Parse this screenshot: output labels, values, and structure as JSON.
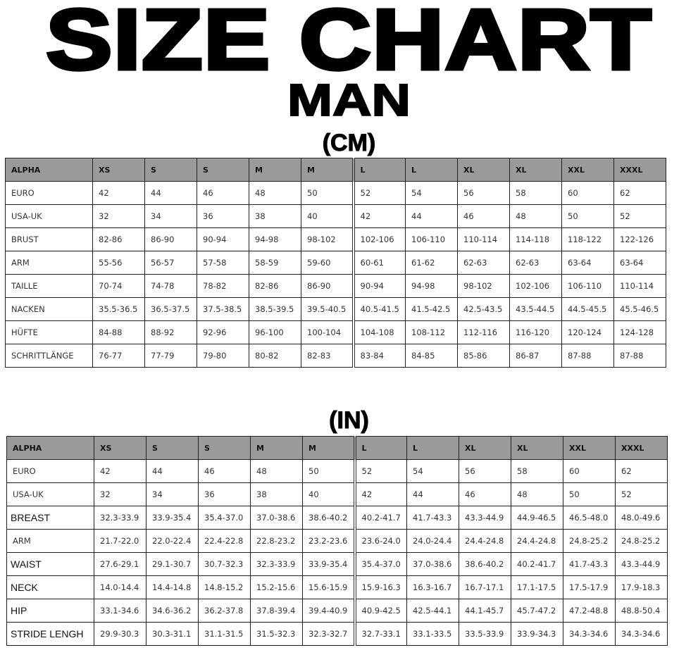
{
  "title": "SIZE CHART",
  "subtitle": "MAN",
  "cm_table": {
    "unit": "(CM)",
    "header": [
      "ALPHA",
      "XS",
      "S",
      "S",
      "M",
      "M",
      "L",
      "L",
      "XL",
      "XL",
      "XXL",
      "XXXL"
    ],
    "rows": [
      [
        "EURO",
        "42",
        "44",
        "46",
        "48",
        "50",
        "52",
        "54",
        "56",
        "58",
        "60",
        "62"
      ],
      [
        "USA-UK",
        "32",
        "34",
        "36",
        "38",
        "40",
        "42",
        "44",
        "46",
        "48",
        "50",
        "52"
      ],
      [
        "BRUST",
        "82-86",
        "86-90",
        "90-94",
        "94-98",
        "98-102",
        "102-106",
        "106-110",
        "110-114",
        "114-118",
        "118-122",
        "122-126"
      ],
      [
        "ARM",
        "55-56",
        "56-57",
        "57-58",
        "58-59",
        "59-60",
        "60-61",
        "61-62",
        "62-63",
        "62-63",
        "63-64",
        "63-64"
      ],
      [
        "TAILLE",
        "70-74",
        "74-78",
        "78-82",
        "82-86",
        "86-90",
        "90-94",
        "94-98",
        "98-102",
        "102-106",
        "106-110",
        "110-114"
      ],
      [
        "NACKEN",
        "35.5-36.5",
        "36.5-37.5",
        "37.5-38.5",
        "38.5-39.5",
        "39.5-40.5",
        "40.5-41.5",
        "41.5-42.5",
        "42.5-43.5",
        "43.5-44.5",
        "44.5-45.5",
        "45.5-46.5"
      ],
      [
        "HÜFTE",
        "84-88",
        "88-92",
        "92-96",
        "96-100",
        "100-104",
        "104-108",
        "108-112",
        "112-116",
        "116-120",
        "120-124",
        "124-128"
      ],
      [
        "SCHRITTLÄNGE",
        "76-77",
        "77-79",
        "79-80",
        "80-82",
        "82-83",
        "83-84",
        "84-85",
        "85-86",
        "86-87",
        "87-88",
        "87-88"
      ]
    ]
  },
  "in_table": {
    "unit": "(IN)",
    "header": [
      "ALPHA",
      "XS",
      "S",
      "S",
      "M",
      "M",
      "L",
      "L",
      "XL",
      "XL",
      "XXL",
      "XXXL"
    ],
    "rows": [
      [
        "EURO",
        "42",
        "44",
        "46",
        "48",
        "50",
        "52",
        "54",
        "56",
        "58",
        "60",
        "62"
      ],
      [
        "USA-UK",
        "32",
        "34",
        "36",
        "38",
        "40",
        "42",
        "44",
        "46",
        "48",
        "50",
        "52"
      ],
      [
        "BREAST",
        "32.3-33.9",
        "33.9-35.4",
        "35.4-37.0",
        "37.0-38.6",
        "38.6-40.2",
        "40.2-41.7",
        "41.7-43.3",
        "43.3-44.9",
        "44.9-46.5",
        "46.5-48.0",
        "48.0-49.6"
      ],
      [
        "ARM",
        "21.7-22.0",
        "22.0-22.4",
        "22.4-22.8",
        "22.8-23.2",
        "23.2-23.6",
        "23.6-24.0",
        "24.0-24.4",
        "24.4-24.8",
        "24.4-24.8",
        "24.8-25.2",
        "24.8-25.2"
      ],
      [
        "WAIST",
        "27.6-29.1",
        "29.1-30.7",
        "30.7-32.3",
        "32.3-33.9",
        "33.9-35.4",
        "35.4-37.0",
        "37.0-38.6",
        "38.6-40.2",
        "40.2-41.7",
        "41.7-43.3",
        "43.3-44.9"
      ],
      [
        "NECK",
        "14.0-14.4",
        "14.4-14.8",
        "14.8-15.2",
        "15.2-15.6",
        "15.6-15.9",
        "15.9-16.3",
        "16.3-16.7",
        "16.7-17.1",
        "17.1-17.5",
        "17.5-17.9",
        "17.9-18.3"
      ],
      [
        "HIP",
        "33.1-34.6",
        "34.6-36.2",
        "36.2-37.8",
        "37.8-39.4",
        "39.4-40.9",
        "40.9-42.5",
        "42.5-44.1",
        "44.1-45.7",
        "45.7-47.2",
        "47.2-48.8",
        "48.8-50.4"
      ],
      [
        "STRIDE LENGH",
        "29.9-30.3",
        "30.3-31.1",
        "31.1-31.5",
        "31.5-32.3",
        "32.3-32.7",
        "32.7-33.1",
        "33.1-33.5",
        "33.5-33.9",
        "33.9-34.3",
        "34.3-34.6",
        "34.3-34.6"
      ]
    ]
  }
}
